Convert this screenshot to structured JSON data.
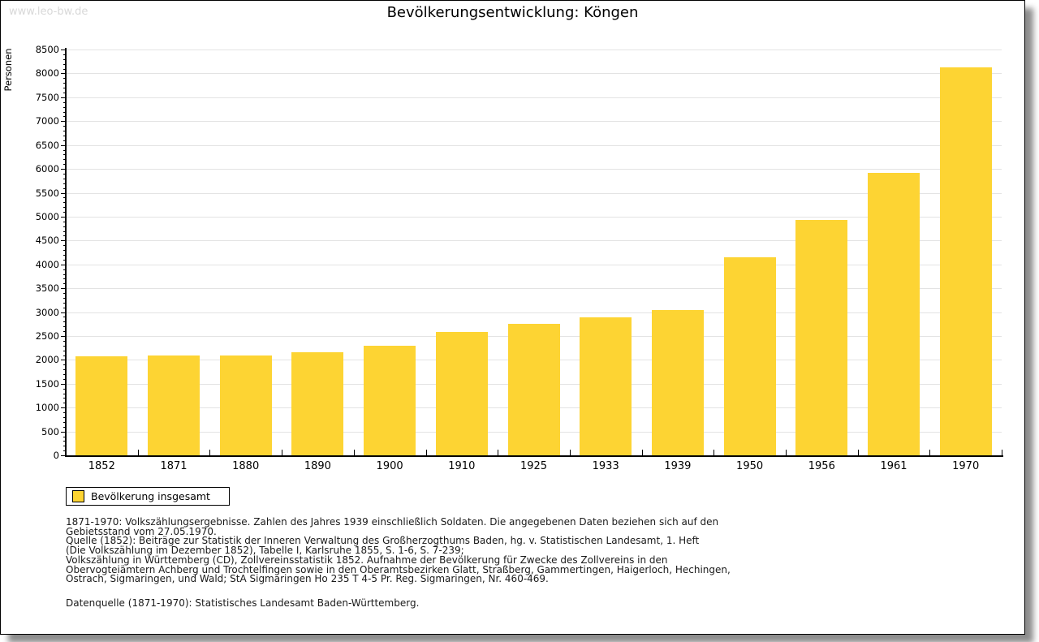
{
  "page": {
    "watermark": "www.leo-bw.de",
    "title": "Bevölkerungsentwicklung: Köngen"
  },
  "chart_data": {
    "type": "bar",
    "title": "Bevölkerungsentwicklung: Köngen",
    "xlabel": "",
    "ylabel": "Personen",
    "categories": [
      "1852",
      "1871",
      "1880",
      "1890",
      "1900",
      "1910",
      "1925",
      "1933",
      "1939",
      "1950",
      "1956",
      "1961",
      "1970"
    ],
    "values": [
      2073,
      2095,
      2090,
      2155,
      2290,
      2580,
      2760,
      2895,
      3045,
      4155,
      4925,
      5925,
      8125
    ],
    "ylim": [
      0,
      8500
    ],
    "yticks": [
      0,
      500,
      1000,
      1500,
      2000,
      2500,
      3000,
      3500,
      4000,
      4500,
      5000,
      5500,
      6000,
      6500,
      7000,
      7500,
      8000,
      8500
    ],
    "ytick_minor_step": 100,
    "grid": true,
    "legend_position": "bottom-left",
    "legend_entries": [
      "Bevölkerung insgesamt"
    ],
    "bar_color": "#FDD433"
  },
  "legend": {
    "label": "Bevölkerung insgesamt"
  },
  "footer": {
    "lines": [
      "1871-1970: Volkszählungsergebnisse. Zahlen des Jahres 1939 einschließlich Soldaten. Die angegebenen Daten beziehen sich auf den",
      "Gebietsstand vom 27.05.1970.",
      "Quelle (1852): Beiträge zur Statistik der Inneren Verwaltung des Großherzogthums Baden, hg. v. Statistischen Landesamt, 1. Heft",
      "(Die Volkszählung im Dezember 1852), Tabelle I, Karlsruhe 1855, S. 1-6, S. 7-239;",
      "Volkszählung in Württemberg (CD), Zollvereinsstatistik 1852. Aufnahme der Bevölkerung für Zwecke des Zollvereins in den",
      "Obervogteiämtern Achberg und Trochtelfingen sowie in den Oberamtsbezirken Glatt, Straßberg, Gammertingen, Haigerloch, Hechingen,",
      "Ostrach, Sigmaringen, und Wald; StA Sigmaringen Ho 235 T 4-5 Pr. Reg. Sigmaringen, Nr. 460-469.",
      "Datenquelle (1871-1970): Statistisches Landesamt Baden-Württemberg."
    ]
  },
  "colors": {
    "bar": "#FDD433",
    "grid": "#e3e3e3",
    "axis": "#000000",
    "watermark": "#d8d8d8"
  }
}
